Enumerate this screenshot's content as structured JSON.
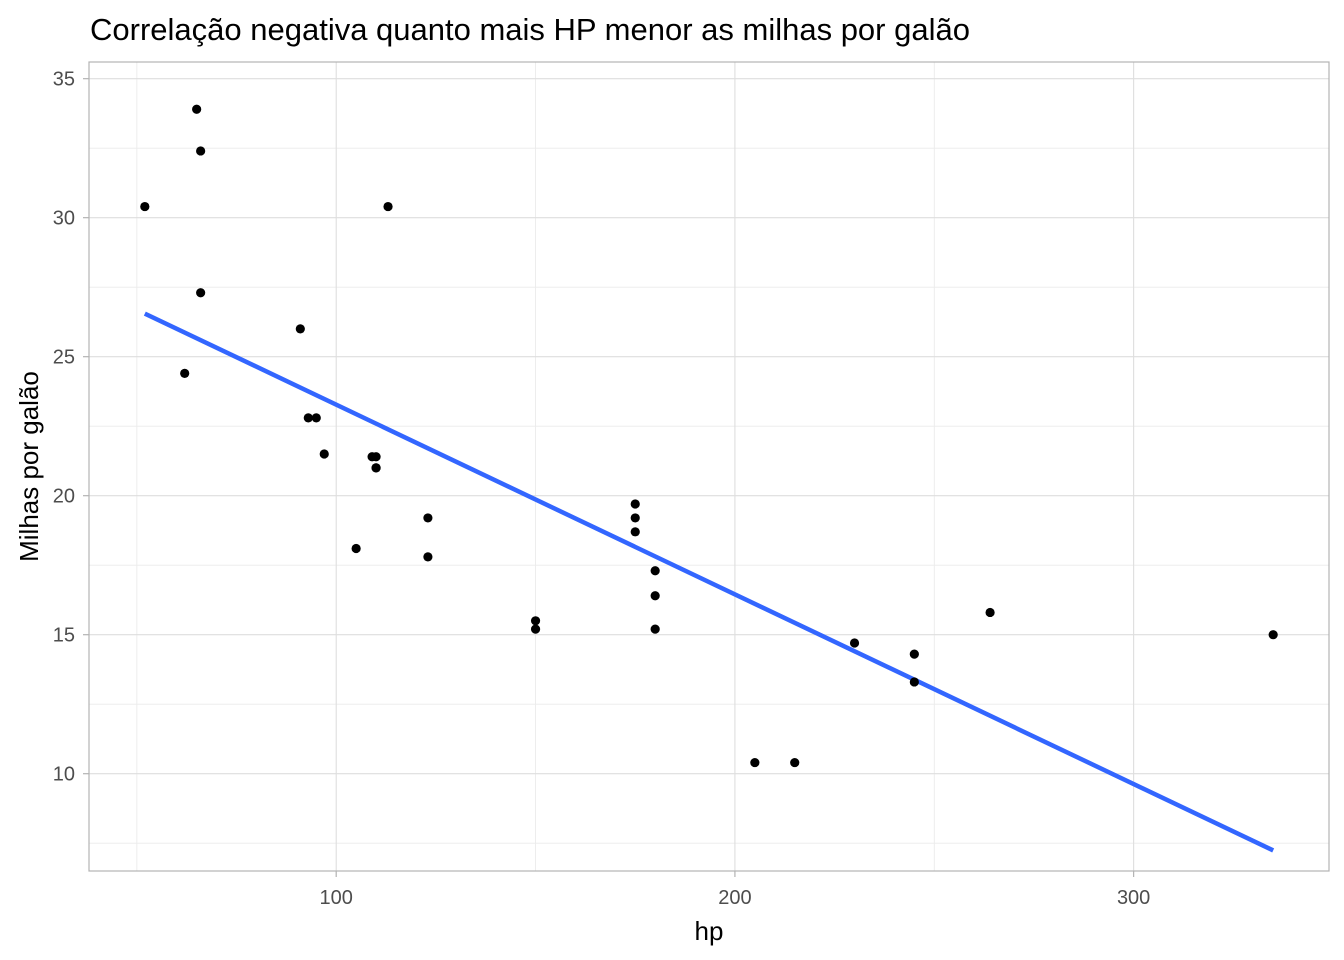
{
  "chart_data": {
    "type": "scatter",
    "title": "Correlação negativa quanto mais HP menor as milhas por galão",
    "xlabel": "hp",
    "ylabel": "Milhas por galão",
    "xlim": [
      38,
      349
    ],
    "ylim": [
      6.5,
      35.6
    ],
    "x_ticks": [
      100,
      200,
      300
    ],
    "x_tick_labels": [
      "100",
      "200",
      "300"
    ],
    "y_ticks": [
      10,
      15,
      20,
      25,
      30,
      35
    ],
    "y_tick_labels": [
      "10",
      "15",
      "20",
      "25",
      "30",
      "35"
    ],
    "grid": true,
    "points": [
      {
        "x": 52,
        "y": 30.4
      },
      {
        "x": 62,
        "y": 24.4
      },
      {
        "x": 65,
        "y": 33.9
      },
      {
        "x": 66,
        "y": 32.4
      },
      {
        "x": 66,
        "y": 27.3
      },
      {
        "x": 91,
        "y": 26.0
      },
      {
        "x": 93,
        "y": 22.8
      },
      {
        "x": 95,
        "y": 22.8
      },
      {
        "x": 97,
        "y": 21.5
      },
      {
        "x": 105,
        "y": 18.1
      },
      {
        "x": 109,
        "y": 21.4
      },
      {
        "x": 110,
        "y": 21.0
      },
      {
        "x": 110,
        "y": 21.0
      },
      {
        "x": 110,
        "y": 21.4
      },
      {
        "x": 113,
        "y": 30.4
      },
      {
        "x": 123,
        "y": 19.2
      },
      {
        "x": 123,
        "y": 17.8
      },
      {
        "x": 150,
        "y": 15.5
      },
      {
        "x": 150,
        "y": 15.2
      },
      {
        "x": 175,
        "y": 19.7
      },
      {
        "x": 175,
        "y": 19.2
      },
      {
        "x": 175,
        "y": 18.7
      },
      {
        "x": 180,
        "y": 17.3
      },
      {
        "x": 180,
        "y": 16.4
      },
      {
        "x": 180,
        "y": 15.2
      },
      {
        "x": 205,
        "y": 10.4
      },
      {
        "x": 215,
        "y": 10.4
      },
      {
        "x": 230,
        "y": 14.7
      },
      {
        "x": 245,
        "y": 14.3
      },
      {
        "x": 245,
        "y": 13.3
      },
      {
        "x": 264,
        "y": 15.8
      },
      {
        "x": 335,
        "y": 15.0
      }
    ],
    "trend_line": {
      "method": "linear",
      "start": {
        "x": 52,
        "y": 26.55
      },
      "end": {
        "x": 335,
        "y": 7.24
      }
    },
    "colors": {
      "points": "#000000",
      "trend_line": "#3366ff",
      "grid_major": "#dedede",
      "grid_minor": "#ebebeb",
      "panel_border": "#b3b3b3",
      "tick_text": "#4d4d4d"
    }
  }
}
